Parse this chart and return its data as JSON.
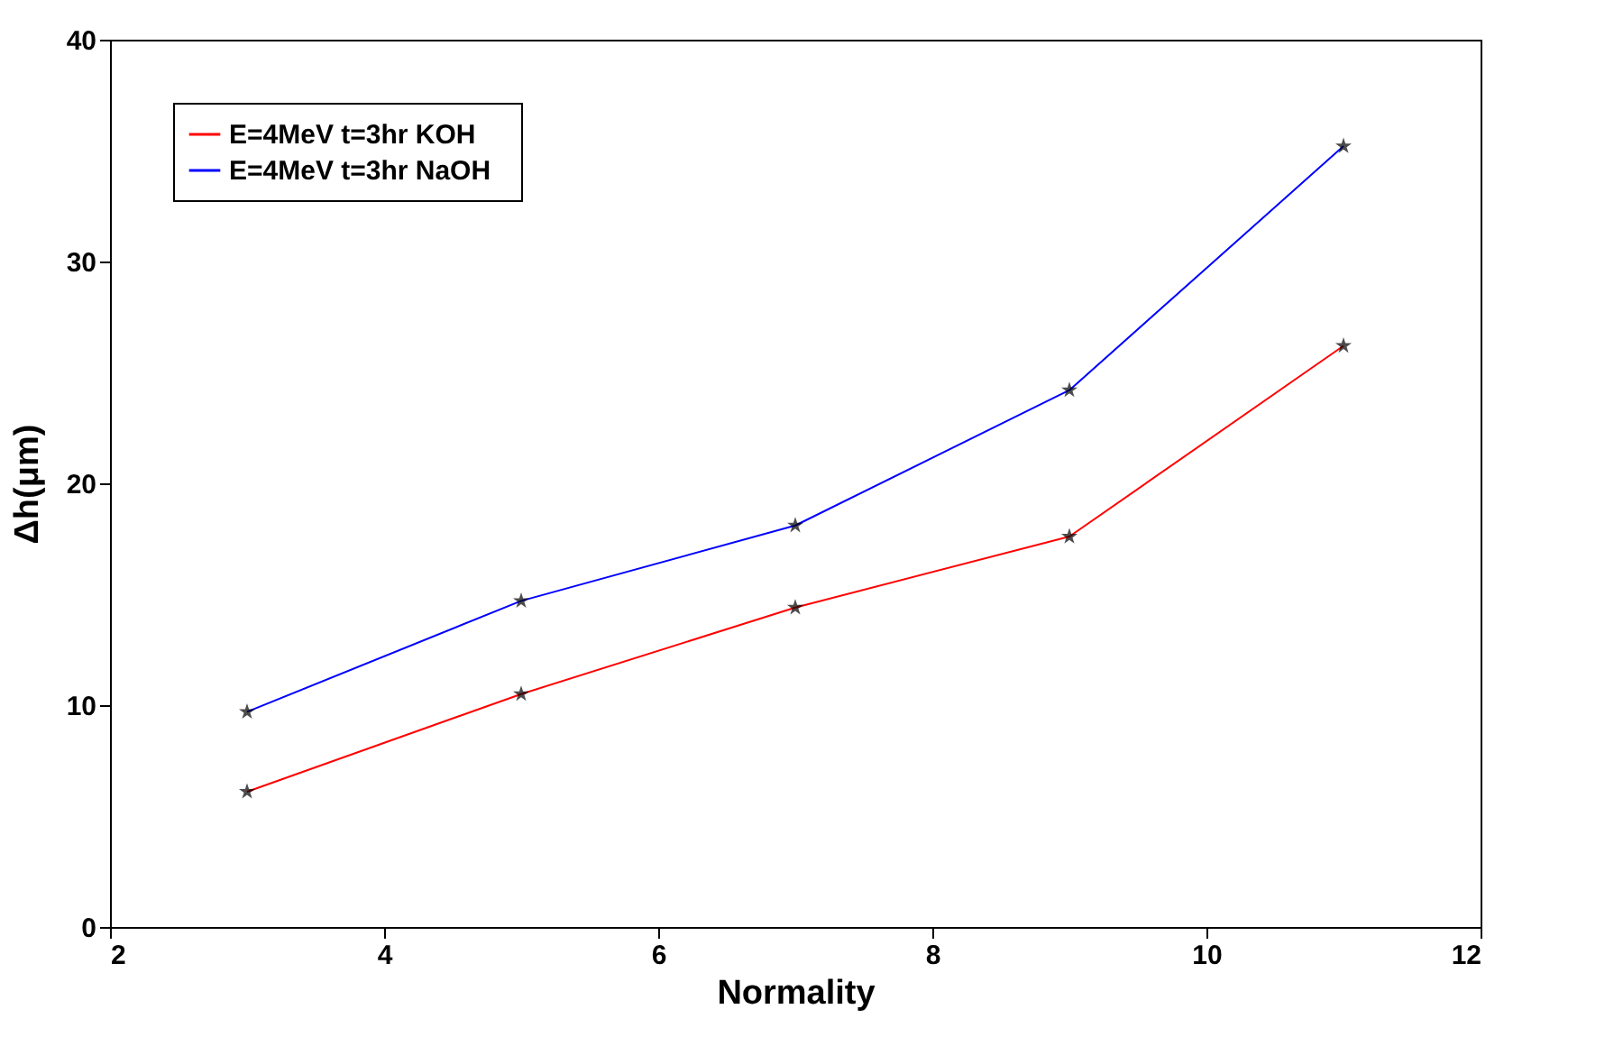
{
  "chart_data": {
    "type": "line",
    "xlabel": "Normality",
    "ylabel": "Δh(μm)",
    "x": [
      3,
      5,
      7,
      9,
      11
    ],
    "series": [
      {
        "name": "E=4MeV  t=3hr  KOH",
        "color": "#ff0000",
        "values": [
          6.1,
          10.5,
          14.4,
          17.6,
          26.2
        ]
      },
      {
        "name": "E=4MeV  t=3hr  NaOH",
        "color": "#0000ff",
        "values": [
          9.7,
          14.7,
          18.1,
          24.2,
          35.2
        ]
      }
    ],
    "xlim": [
      2,
      12
    ],
    "xticks": [
      2,
      4,
      6,
      8,
      10,
      12
    ],
    "ylim": [
      0,
      40
    ],
    "yticks": [
      0,
      10,
      20,
      30,
      40
    ],
    "grid": false,
    "legend": "top left",
    "marker": "star",
    "line_style": "solid"
  }
}
